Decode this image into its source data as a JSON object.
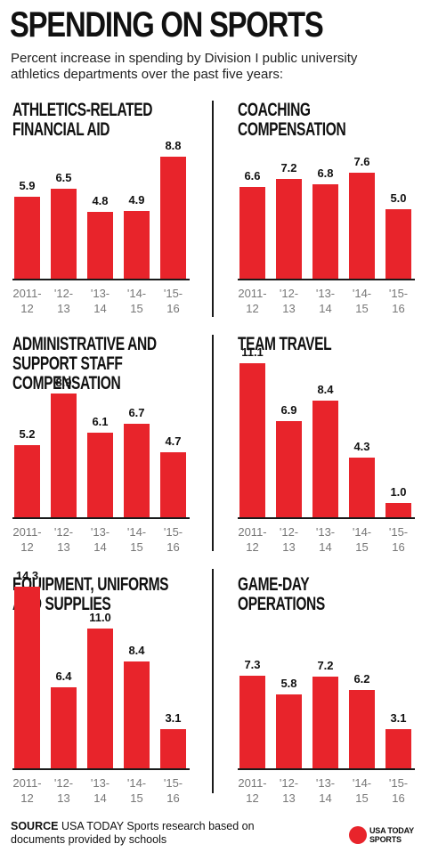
{
  "header": {
    "title": "SPENDING ON SPORTS",
    "subtitle": "Percent increase in spending by Division I public university athletics departments over the past five years:"
  },
  "colors": {
    "bar": "#e8242b",
    "text": "#111111",
    "tick": "#777777"
  },
  "chart_data": [
    {
      "type": "bar",
      "title": "ATHLETICS-RELATED\nFINANCIAL AID",
      "categories": [
        "2011-\n12",
        "'12-\n13",
        "'13-\n14",
        "'14-\n15",
        "'15-\n16"
      ],
      "values": [
        5.9,
        6.5,
        4.8,
        4.9,
        8.8
      ],
      "labels": [
        "5.9",
        "6.5",
        "4.8",
        "4.9",
        "8.8"
      ]
    },
    {
      "type": "bar",
      "title": "COACHING\nCOMPENSATION",
      "categories": [
        "2011-\n12",
        "'12-\n13",
        "'13-\n14",
        "'14-\n15",
        "'15-\n16"
      ],
      "values": [
        6.6,
        7.2,
        6.8,
        7.6,
        5.0
      ],
      "labels": [
        "6.6",
        "7.2",
        "6.8",
        "7.6",
        "5.0"
      ]
    },
    {
      "type": "bar",
      "title": "ADMINISTRATIVE AND\nSUPPORT STAFF\nCOMPENSATION",
      "categories": [
        "2011-\n12",
        "'12-\n13",
        "'13-\n14",
        "'14-\n15",
        "'15-\n16"
      ],
      "values": [
        5.2,
        8.9,
        6.1,
        6.7,
        4.7
      ],
      "labels": [
        "5.2",
        "8.9",
        "6.1",
        "6.7",
        "4.7"
      ]
    },
    {
      "type": "bar",
      "title": "TEAM TRAVEL",
      "categories": [
        "2011-\n12",
        "'12-\n13",
        "'13-\n14",
        "'14-\n15",
        "'15-\n16"
      ],
      "values": [
        11.1,
        6.9,
        8.4,
        4.3,
        1.0
      ],
      "labels": [
        "11.1",
        "6.9",
        "8.4",
        "4.3",
        "1.0"
      ]
    },
    {
      "type": "bar",
      "title": "EQUIPMENT, UNIFORMS\nAND SUPPLIES",
      "categories": [
        "2011-\n12",
        "'12-\n13",
        "'13-\n14",
        "'14-\n15",
        "'15-\n16"
      ],
      "values": [
        14.3,
        6.4,
        11.0,
        8.4,
        3.1
      ],
      "labels": [
        "14.3",
        "6.4",
        "11.0",
        "8.4",
        "3.1"
      ]
    },
    {
      "type": "bar",
      "title": "GAME-DAY\nOPERATIONS",
      "categories": [
        "2011-\n12",
        "'12-\n13",
        "'13-\n14",
        "'14-\n15",
        "'15-\n16"
      ],
      "values": [
        7.3,
        5.8,
        7.2,
        6.2,
        3.1
      ],
      "labels": [
        "7.3",
        "5.8",
        "7.2",
        "6.2",
        "3.1"
      ]
    }
  ],
  "footer": {
    "source_label": "SOURCE",
    "source_text": "USA TODAY Sports research based on documents provided by schools",
    "logo_top": "USA TODAY",
    "logo_bottom": "SPORTS"
  }
}
